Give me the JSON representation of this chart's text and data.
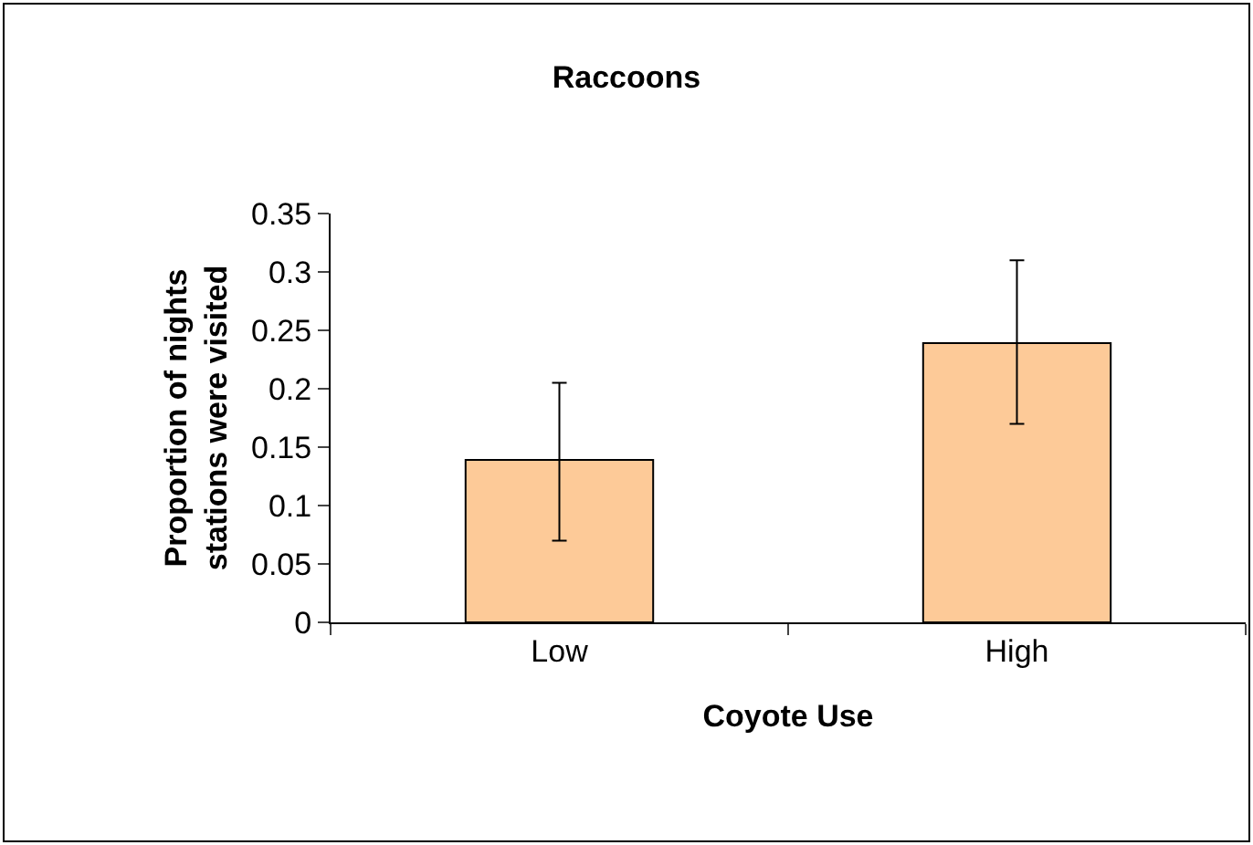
{
  "chart_data": {
    "type": "bar",
    "title": "Raccoons",
    "xlabel": "Coyote Use",
    "ylabel": "Proportion of nights\nstations were visited",
    "categories": [
      "Low",
      "High"
    ],
    "series": [
      {
        "color": "#fdca98",
        "values": [
          0.139,
          0.239
        ],
        "errors": [
          [
            0.07,
            0.205
          ],
          [
            0.17,
            0.31
          ]
        ]
      }
    ],
    "ylim": [
      0,
      0.35
    ],
    "yticks": [
      0,
      0.05,
      0.1,
      0.15,
      0.2,
      0.25,
      0.3,
      0.35
    ]
  }
}
